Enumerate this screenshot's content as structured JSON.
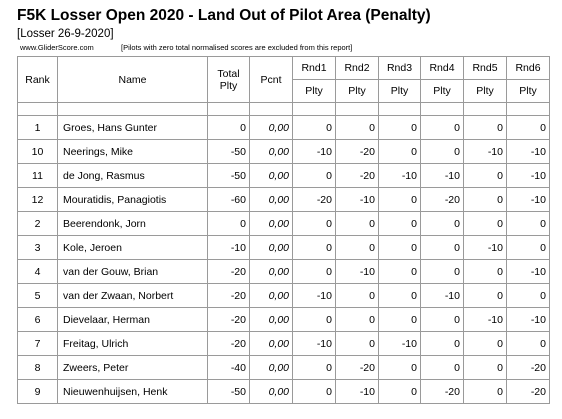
{
  "title": "F5K Losser Open 2020 - Land Out of Pilot Area (Penalty)",
  "subtitle": "[Losser 26-9-2020]",
  "website": "www.GliderScore.com",
  "note": "[Pilots with zero total normalised scores are excluded from this report]",
  "headers": {
    "rank": "Rank",
    "name": "Name",
    "total_line1": "Total",
    "total_line2": "Plty",
    "pcnt": "Pcnt",
    "rounds": [
      "Rnd1",
      "Rnd2",
      "Rnd3",
      "Rnd4",
      "Rnd5",
      "Rnd6"
    ],
    "round_sub": "Plty"
  },
  "rows": [
    {
      "rank": "1",
      "name": "Groes, Hans Gunter",
      "total": "0",
      "pcnt": "0,00",
      "rounds": [
        "0",
        "0",
        "0",
        "0",
        "0",
        "0"
      ]
    },
    {
      "rank": "10",
      "name": "Neerings, Mike",
      "total": "-50",
      "pcnt": "0,00",
      "rounds": [
        "-10",
        "-20",
        "0",
        "0",
        "-10",
        "-10"
      ]
    },
    {
      "rank": "11",
      "name": "de Jong, Rasmus",
      "total": "-50",
      "pcnt": "0,00",
      "rounds": [
        "0",
        "-20",
        "-10",
        "-10",
        "0",
        "-10"
      ]
    },
    {
      "rank": "12",
      "name": "Mouratidis, Panagiotis",
      "total": "-60",
      "pcnt": "0,00",
      "rounds": [
        "-20",
        "-10",
        "0",
        "-20",
        "0",
        "-10"
      ]
    },
    {
      "rank": "2",
      "name": "Beerendonk, Jorn",
      "total": "0",
      "pcnt": "0,00",
      "rounds": [
        "0",
        "0",
        "0",
        "0",
        "0",
        "0"
      ]
    },
    {
      "rank": "3",
      "name": "Kole, Jeroen",
      "total": "-10",
      "pcnt": "0,00",
      "rounds": [
        "0",
        "0",
        "0",
        "0",
        "-10",
        "0"
      ]
    },
    {
      "rank": "4",
      "name": "van der Gouw, Brian",
      "total": "-20",
      "pcnt": "0,00",
      "rounds": [
        "0",
        "-10",
        "0",
        "0",
        "0",
        "-10"
      ]
    },
    {
      "rank": "5",
      "name": "van der Zwaan, Norbert",
      "total": "-20",
      "pcnt": "0,00",
      "rounds": [
        "-10",
        "0",
        "0",
        "-10",
        "0",
        "0"
      ]
    },
    {
      "rank": "6",
      "name": "Dievelaar, Herman",
      "total": "-20",
      "pcnt": "0,00",
      "rounds": [
        "0",
        "0",
        "0",
        "0",
        "-10",
        "-10"
      ]
    },
    {
      "rank": "7",
      "name": "Freitag, Ulrich",
      "total": "-20",
      "pcnt": "0,00",
      "rounds": [
        "-10",
        "0",
        "-10",
        "0",
        "0",
        "0"
      ]
    },
    {
      "rank": "8",
      "name": "Zweers, Peter",
      "total": "-40",
      "pcnt": "0,00",
      "rounds": [
        "0",
        "-20",
        "0",
        "0",
        "0",
        "-20"
      ]
    },
    {
      "rank": "9",
      "name": "Nieuwenhuijsen, Henk",
      "total": "-50",
      "pcnt": "0,00",
      "rounds": [
        "0",
        "-10",
        "0",
        "-20",
        "0",
        "-20"
      ]
    }
  ]
}
